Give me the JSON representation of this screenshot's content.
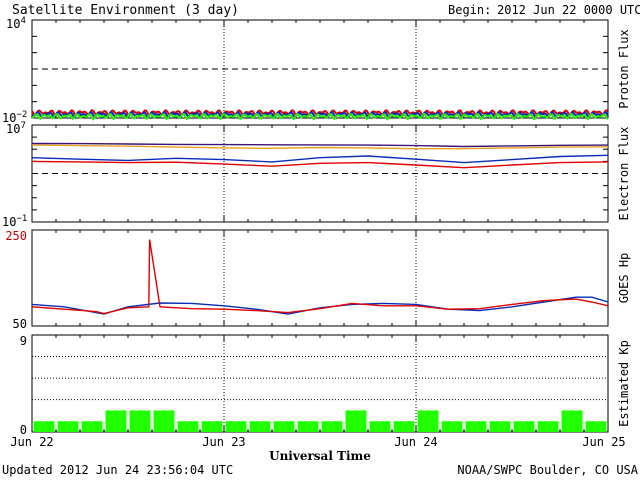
{
  "header": {
    "title": "Satellite Environment (3 day)",
    "begin_label": "Begin:",
    "begin_value": "2012 Jun 22 0000 UTC"
  },
  "footer": {
    "updated": "Updated 2012 Jun 24 23:56:04 UTC",
    "credit": "NOAA/SWPC Boulder, CO USA"
  },
  "x_axis": {
    "label": "Universal Time",
    "ticks": [
      "Jun 22",
      "Jun 23",
      "Jun 24",
      "Jun 25"
    ]
  },
  "colors": {
    "red": "#e00000",
    "blue": "#0a2cb8",
    "green": "#22ee00",
    "orange": "#e8a020",
    "purple": "#3c1478",
    "kp_bar": "#22ff00",
    "hp_label": "#cc0000"
  },
  "chart_data": [
    {
      "type": "line",
      "ylabel": "Proton Flux",
      "y_scale": "log",
      "ylim": [
        0.01,
        10000
      ],
      "y_ticks": [
        "10^4",
        "10^-2"
      ],
      "x_range_hours": [
        0,
        72
      ],
      "series": [
        {
          "color": "red",
          "x": [
            0,
            12,
            24,
            36,
            48,
            60,
            72
          ],
          "y": [
            0.022,
            0.023,
            0.022,
            0.023,
            0.022,
            0.023,
            0.022
          ]
        },
        {
          "color": "blue",
          "x": [
            0,
            12,
            24,
            36,
            48,
            60,
            72
          ],
          "y": [
            0.017,
            0.017,
            0.016,
            0.017,
            0.016,
            0.017,
            0.016
          ]
        },
        {
          "color": "green",
          "x": [
            0,
            12,
            24,
            36,
            48,
            60,
            72
          ],
          "y": [
            0.013,
            0.013,
            0.012,
            0.013,
            0.012,
            0.013,
            0.012
          ]
        }
      ],
      "threshold": 10,
      "grid_x": [
        24,
        48
      ]
    },
    {
      "type": "line",
      "ylabel": "Electron Flux",
      "y_scale": "log",
      "ylim": [
        0.1,
        10000000
      ],
      "y_ticks": [
        "10^7",
        "10^-1"
      ],
      "x_range_hours": [
        0,
        72
      ],
      "series": [
        {
          "color": "purple",
          "x": [
            0,
            6,
            12,
            18,
            24,
            30,
            36,
            42,
            48,
            54,
            60,
            66,
            72
          ],
          "y": [
            300000,
            290000,
            270000,
            250000,
            240000,
            235000,
            230000,
            220000,
            200000,
            170000,
            190000,
            210000,
            220000
          ]
        },
        {
          "color": "orange",
          "x": [
            0,
            6,
            12,
            18,
            24,
            30,
            36,
            42,
            48,
            54,
            60,
            66,
            72
          ],
          "y": [
            220000,
            200000,
            180000,
            150000,
            130000,
            120000,
            140000,
            130000,
            110000,
            110000,
            130000,
            150000,
            160000
          ]
        },
        {
          "color": "blue",
          "x": [
            0,
            6,
            12,
            18,
            24,
            30,
            36,
            42,
            48,
            54,
            60,
            66,
            72
          ],
          "y": [
            20000,
            15000,
            12000,
            18000,
            14000,
            9000,
            20000,
            28000,
            15000,
            8000,
            14000,
            25000,
            32000
          ]
        },
        {
          "color": "red",
          "x": [
            0,
            6,
            12,
            18,
            24,
            30,
            36,
            42,
            48,
            54,
            60,
            66,
            72
          ],
          "y": [
            10000,
            9000,
            8000,
            8500,
            6000,
            4000,
            7000,
            8000,
            5000,
            3000,
            5000,
            8000,
            9000
          ]
        }
      ],
      "threshold": 1000,
      "grid_x": [
        24,
        48
      ]
    },
    {
      "type": "line",
      "ylabel": "GOES Hp",
      "y_scale": "linear",
      "ylim": [
        50,
        250
      ],
      "y_ticks": [
        "250",
        "50"
      ],
      "x_range_hours": [
        0,
        72
      ],
      "series": [
        {
          "color": "blue",
          "x": [
            0,
            4,
            8,
            9,
            12,
            16,
            20,
            24,
            28,
            32,
            36,
            40,
            44,
            48,
            52,
            56,
            60,
            64,
            68,
            70,
            72
          ],
          "y": [
            95,
            90,
            78,
            75,
            90,
            98,
            97,
            92,
            85,
            75,
            88,
            95,
            97,
            95,
            85,
            82,
            90,
            100,
            110,
            110,
            100
          ]
        },
        {
          "color": "red",
          "x": [
            0,
            4,
            8,
            9,
            12,
            14.6,
            14.7,
            16,
            20,
            24,
            28,
            32,
            36,
            40,
            44,
            48,
            52,
            56,
            60,
            64,
            68,
            70,
            72
          ],
          "y": [
            90,
            85,
            80,
            76,
            88,
            90,
            230,
            90,
            86,
            85,
            82,
            78,
            86,
            97,
            92,
            92,
            85,
            86,
            95,
            103,
            106,
            100,
            92
          ]
        }
      ],
      "grid_x": [
        24,
        48
      ]
    },
    {
      "type": "bar",
      "ylabel": "Estimated Kp",
      "ylim": [
        0,
        9
      ],
      "y_ticks": [
        "9",
        "0"
      ],
      "x_range_hours": [
        0,
        72
      ],
      "categories_hours": [
        0,
        3,
        6,
        9,
        12,
        15,
        18,
        21,
        24,
        27,
        30,
        33,
        36,
        39,
        42,
        45,
        48,
        51,
        54,
        57,
        60,
        63,
        66,
        69
      ],
      "values": [
        1,
        1,
        1,
        2,
        2,
        2,
        1,
        1,
        1,
        1,
        1,
        1,
        1,
        2,
        1,
        1,
        2,
        1,
        1,
        1,
        1,
        1,
        2,
        1
      ],
      "grid_y": [
        3,
        5,
        7
      ],
      "grid_x": [
        24,
        48
      ]
    }
  ]
}
